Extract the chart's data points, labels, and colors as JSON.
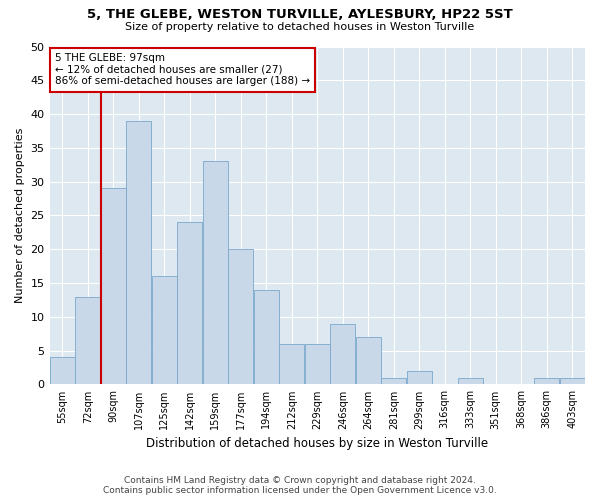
{
  "title": "5, THE GLEBE, WESTON TURVILLE, AYLESBURY, HP22 5ST",
  "subtitle": "Size of property relative to detached houses in Weston Turville",
  "xlabel": "Distribution of detached houses by size in Weston Turville",
  "ylabel": "Number of detached properties",
  "footer_line1": "Contains HM Land Registry data © Crown copyright and database right 2024.",
  "footer_line2": "Contains public sector information licensed under the Open Government Licence v3.0.",
  "categories": [
    "55sqm",
    "72sqm",
    "90sqm",
    "107sqm",
    "125sqm",
    "142sqm",
    "159sqm",
    "177sqm",
    "194sqm",
    "212sqm",
    "229sqm",
    "246sqm",
    "264sqm",
    "281sqm",
    "299sqm",
    "316sqm",
    "333sqm",
    "351sqm",
    "368sqm",
    "386sqm",
    "403sqm"
  ],
  "values": [
    4,
    13,
    29,
    39,
    16,
    24,
    33,
    20,
    14,
    6,
    6,
    9,
    7,
    1,
    2,
    0,
    1,
    0,
    0,
    1,
    1
  ],
  "bar_color": "#c8d8e8",
  "bar_edge_color": "#7aa8cc",
  "ylim": [
    0,
    50
  ],
  "yticks": [
    0,
    5,
    10,
    15,
    20,
    25,
    30,
    35,
    40,
    45,
    50
  ],
  "property_line_color": "#cc0000",
  "annotation_text": "5 THE GLEBE: 97sqm\n← 12% of detached houses are smaller (27)\n86% of semi-detached houses are larger (188) →",
  "annotation_box_facecolor": "#ffffff",
  "annotation_box_edgecolor": "#cc0000",
  "grid_color": "#ffffff",
  "bg_color": "#dde8f0"
}
